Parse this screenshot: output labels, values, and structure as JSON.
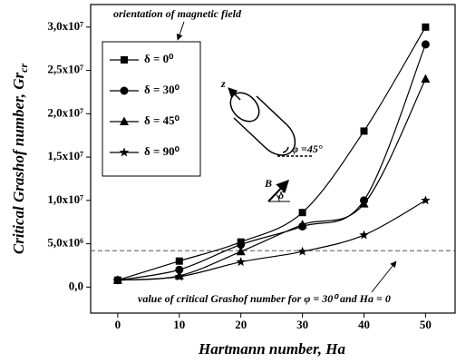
{
  "chart_data": {
    "type": "line",
    "x_label": "Hartmann number, Ha",
    "y_label": "Critical Grashof number, Gr",
    "y_label_subscript": "cr",
    "x": [
      0,
      10,
      20,
      30,
      40,
      50
    ],
    "series": [
      {
        "name": "δ = 0⁰",
        "color": "#000000",
        "marker": "square",
        "values": [
          800000,
          3000000,
          5200000,
          8600000,
          18000000,
          30000000
        ]
      },
      {
        "name": "δ = 30⁰",
        "color": "#000000",
        "marker": "circle",
        "values": [
          800000,
          2000000,
          4900000,
          7000000,
          10000000,
          28000000
        ]
      },
      {
        "name": "δ = 45⁰",
        "color": "#000000",
        "marker": "triangle",
        "values": [
          800000,
          1300000,
          4100000,
          7200000,
          9600000,
          24000000
        ]
      },
      {
        "name": "δ = 90⁰",
        "color": "#000000",
        "marker": "star",
        "values": [
          800000,
          1200000,
          2900000,
          4100000,
          6000000,
          10000000
        ]
      }
    ],
    "xlim": [
      -4.4,
      54.8
    ],
    "ylim": [
      -3000000,
      32600000
    ],
    "xticks": [
      0,
      10,
      20,
      30,
      40,
      50
    ],
    "yticks": [
      {
        "value": 0,
        "label": "0,0"
      },
      {
        "value": 5000000,
        "label": "5,0x10⁶"
      },
      {
        "value": 10000000,
        "label": "1,0x10⁷"
      },
      {
        "value": 15000000,
        "label": "1,5x10⁷"
      },
      {
        "value": 20000000,
        "label": "2,0x10⁷"
      },
      {
        "value": 25000000,
        "label": "2,5x10⁷"
      },
      {
        "value": 30000000,
        "label": "3,0x10⁷"
      }
    ],
    "reference_line": 4200000,
    "legend": "upper left",
    "annotations": [
      "orientation of magnetic field",
      "value of critical Grashof number for φ = 30⁰ and Ha = 0",
      "z",
      "φ =45°",
      "B",
      "δ"
    ]
  }
}
